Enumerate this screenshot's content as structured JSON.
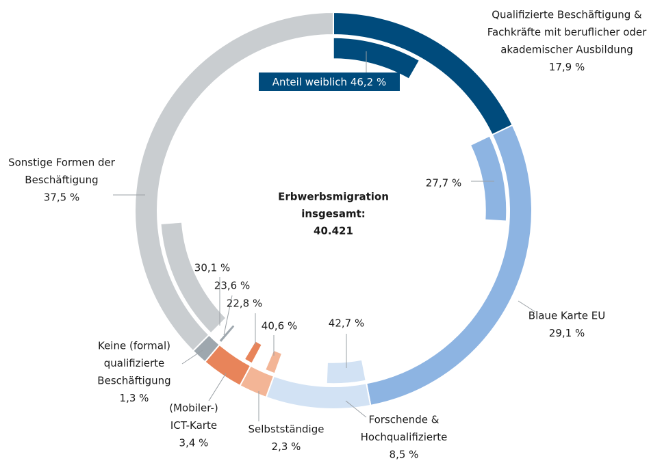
{
  "chart_data": {
    "type": "donut",
    "center_label": [
      "Erbwerbsmigration",
      "insgesamt:"
    ],
    "total": 40421,
    "total_label": "40.421",
    "categories": [
      [
        "Qualifizierte Beschäftigung &",
        "Fachkräfte mit beruflicher oder",
        "akademischer Ausbildung"
      ],
      [
        "Blaue Karte EU"
      ],
      [
        "Forschende &",
        "Hochqualifizierte"
      ],
      [
        "Selbstständige"
      ],
      [
        "(Mobiler-)",
        "ICT-Karte"
      ],
      [
        "Keine (formal)",
        "qualifizierte",
        "Beschäftigung"
      ],
      [
        "Sonstige Formen der",
        "Beschäftigung"
      ]
    ],
    "values": [
      17.9,
      29.1,
      8.5,
      2.3,
      3.4,
      1.3,
      37.5
    ],
    "value_labels": [
      "17,9 %",
      "29,1 %",
      "8,5 %",
      "2,3 %",
      "3,4 %",
      "1,3 %",
      "37,5 %"
    ],
    "colors": [
      "#004b7c",
      "#8db4e2",
      "#d2e2f4",
      "#f3b596",
      "#e8845a",
      "#9ea7ae",
      "#c9cdd0"
    ],
    "inner_annotation": "Anteil weiblich",
    "female_share": [
      46.2,
      27.7,
      42.7,
      40.6,
      22.8,
      23.6,
      30.1
    ],
    "female_share_labels": [
      "46,2 %",
      "27,7 %",
      "42,7 %",
      "40,6 %",
      "22,8 %",
      "23,6 %",
      "30,1 %"
    ]
  }
}
